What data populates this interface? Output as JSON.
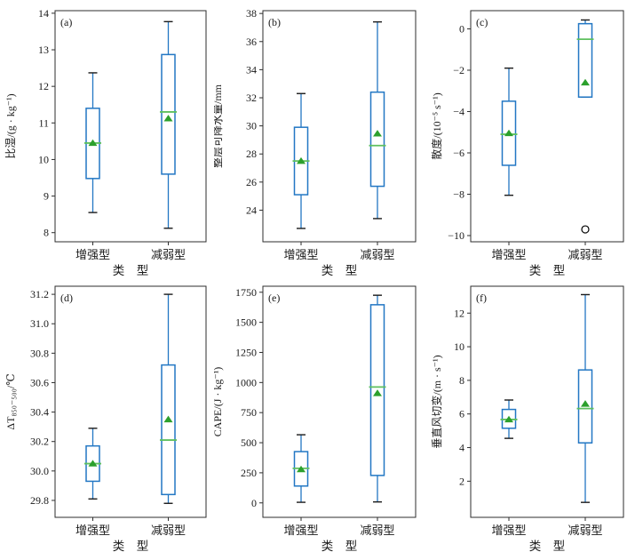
{
  "figure": {
    "background": "#ffffff",
    "description": "Six-panel box plot figure comparing 增强型 and 减弱型 storm types"
  },
  "style": {
    "box_color": "#2277c4",
    "whisker_color": "#2277c4",
    "median_color": "#5fc05f",
    "mean_color": "#2ca02c",
    "cap_color": "#1a1a1a",
    "spine_color": "#2e2e2e",
    "outlier_color": "#000000",
    "text_color": "#1a1a1a"
  },
  "chart_data": [
    {
      "type": "box",
      "panel_label": "(a)",
      "ylabel": "比湿/(g · kg⁻¹)",
      "xlabel": "类　型",
      "categories": [
        "增强型",
        "减弱型"
      ],
      "ylim": [
        7.75,
        14.07
      ],
      "yticks": [
        {
          "v": 8,
          "label": "8"
        },
        {
          "v": 9,
          "label": "9"
        },
        {
          "v": 10,
          "label": "10"
        },
        {
          "v": 11,
          "label": "11"
        },
        {
          "v": 12,
          "label": "12"
        },
        {
          "v": 13,
          "label": "13"
        },
        {
          "v": 14,
          "label": "14"
        }
      ],
      "series": [
        {
          "name": "增强型",
          "whislo": 8.55,
          "q1": 9.48,
          "med": 10.45,
          "mean": 10.45,
          "q3": 11.4,
          "whishi": 12.37,
          "outliers": []
        },
        {
          "name": "减弱型",
          "whislo": 8.12,
          "q1": 9.6,
          "med": 11.3,
          "mean": 11.12,
          "q3": 12.87,
          "whishi": 13.77,
          "outliers": []
        }
      ]
    },
    {
      "type": "box",
      "panel_label": "(b)",
      "ylabel": "整层可降水量/mm",
      "xlabel": "类　型",
      "categories": [
        "增强型",
        "减弱型"
      ],
      "ylim": [
        21.75,
        38.2
      ],
      "yticks": [
        {
          "v": 24,
          "label": "24"
        },
        {
          "v": 26,
          "label": "26"
        },
        {
          "v": 28,
          "label": "28"
        },
        {
          "v": 30,
          "label": "30"
        },
        {
          "v": 32,
          "label": "32"
        },
        {
          "v": 34,
          "label": "34"
        },
        {
          "v": 36,
          "label": "36"
        },
        {
          "v": 38,
          "label": "38"
        }
      ],
      "series": [
        {
          "name": "增强型",
          "whislo": 22.7,
          "q1": 25.1,
          "med": 27.5,
          "mean": 27.5,
          "q3": 29.9,
          "whishi": 32.3,
          "outliers": []
        },
        {
          "name": "减弱型",
          "whislo": 23.4,
          "q1": 25.7,
          "med": 28.6,
          "mean": 29.45,
          "q3": 32.4,
          "whishi": 37.4,
          "outliers": []
        }
      ]
    },
    {
      "type": "box",
      "panel_label": "(c)",
      "ylabel": "散度/(10⁻⁵ s⁻¹)",
      "xlabel": "类　型",
      "categories": [
        "增强型",
        "减弱型"
      ],
      "ylim": [
        -10.3,
        0.88
      ],
      "yticks": [
        {
          "v": 0,
          "label": "0"
        },
        {
          "v": -2,
          "label": "−2"
        },
        {
          "v": -4,
          "label": "−4"
        },
        {
          "v": -6,
          "label": "−6"
        },
        {
          "v": -8,
          "label": "−8"
        },
        {
          "v": -10,
          "label": "−10"
        }
      ],
      "series": [
        {
          "name": "增强型",
          "whislo": -8.05,
          "q1": -6.6,
          "med": -5.1,
          "mean": -5.05,
          "q3": -3.5,
          "whishi": -1.9,
          "outliers": []
        },
        {
          "name": "减弱型",
          "whislo": -3.3,
          "q1": -3.3,
          "med": -0.5,
          "mean": -2.6,
          "q3": 0.25,
          "whishi": 0.43,
          "outliers": [
            -9.7
          ]
        }
      ]
    },
    {
      "type": "box",
      "panel_label": "(d)",
      "ylabel": "ΔT₈₅₀₋₅₀₀/℃",
      "xlabel": "类　型",
      "categories": [
        "增强型",
        "减弱型"
      ],
      "ylim": [
        29.685,
        31.255
      ],
      "yticks": [
        {
          "v": 29.8,
          "label": "29.8"
        },
        {
          "v": 30.0,
          "label": "30.0"
        },
        {
          "v": 30.2,
          "label": "30.2"
        },
        {
          "v": 30.4,
          "label": "30.4"
        },
        {
          "v": 30.6,
          "label": "30.6"
        },
        {
          "v": 30.8,
          "label": "30.8"
        },
        {
          "v": 31.0,
          "label": "31.0"
        },
        {
          "v": 31.2,
          "label": "31.2"
        }
      ],
      "series": [
        {
          "name": "增强型",
          "whislo": 29.81,
          "q1": 29.93,
          "med": 30.05,
          "mean": 30.05,
          "q3": 30.17,
          "whishi": 30.29,
          "outliers": []
        },
        {
          "name": "减弱型",
          "whislo": 29.78,
          "q1": 29.84,
          "med": 30.21,
          "mean": 30.35,
          "q3": 30.72,
          "whishi": 31.2,
          "outliers": []
        }
      ]
    },
    {
      "type": "box",
      "panel_label": "(e)",
      "ylabel": "CAPE/(J · kg⁻¹)",
      "xlabel": "类　型",
      "categories": [
        "增强型",
        "减弱型"
      ],
      "ylim": [
        -120,
        1800
      ],
      "yticks": [
        {
          "v": 0,
          "label": "0"
        },
        {
          "v": 250,
          "label": "250"
        },
        {
          "v": 500,
          "label": "500"
        },
        {
          "v": 750,
          "label": "750"
        },
        {
          "v": 1000,
          "label": "1000"
        },
        {
          "v": 1250,
          "label": "1250"
        },
        {
          "v": 1500,
          "label": "1500"
        },
        {
          "v": 1750,
          "label": "1750"
        }
      ],
      "series": [
        {
          "name": "增强型",
          "whislo": 5,
          "q1": 140,
          "med": 287,
          "mean": 278,
          "q3": 426,
          "whishi": 566,
          "outliers": []
        },
        {
          "name": "减弱型",
          "whislo": 8,
          "q1": 228,
          "med": 963,
          "mean": 911,
          "q3": 1646,
          "whishi": 1725,
          "outliers": []
        }
      ]
    },
    {
      "type": "box",
      "panel_label": "(f)",
      "ylabel": "垂直风切变/(m · s⁻¹)",
      "xlabel": "类　型",
      "categories": [
        "增强型",
        "减弱型"
      ],
      "ylim": [
        -0.15,
        13.6
      ],
      "yticks": [
        {
          "v": 2,
          "label": "2"
        },
        {
          "v": 4,
          "label": "4"
        },
        {
          "v": 6,
          "label": "6"
        },
        {
          "v": 8,
          "label": "8"
        },
        {
          "v": 10,
          "label": "10"
        },
        {
          "v": 12,
          "label": "12"
        }
      ],
      "series": [
        {
          "name": "增强型",
          "whislo": 4.55,
          "q1": 5.15,
          "med": 5.67,
          "mean": 5.67,
          "q3": 6.27,
          "whishi": 6.83,
          "outliers": []
        },
        {
          "name": "减弱型",
          "whislo": 0.74,
          "q1": 4.28,
          "med": 6.32,
          "mean": 6.6,
          "q3": 8.62,
          "whishi": 13.1,
          "outliers": []
        }
      ]
    }
  ]
}
